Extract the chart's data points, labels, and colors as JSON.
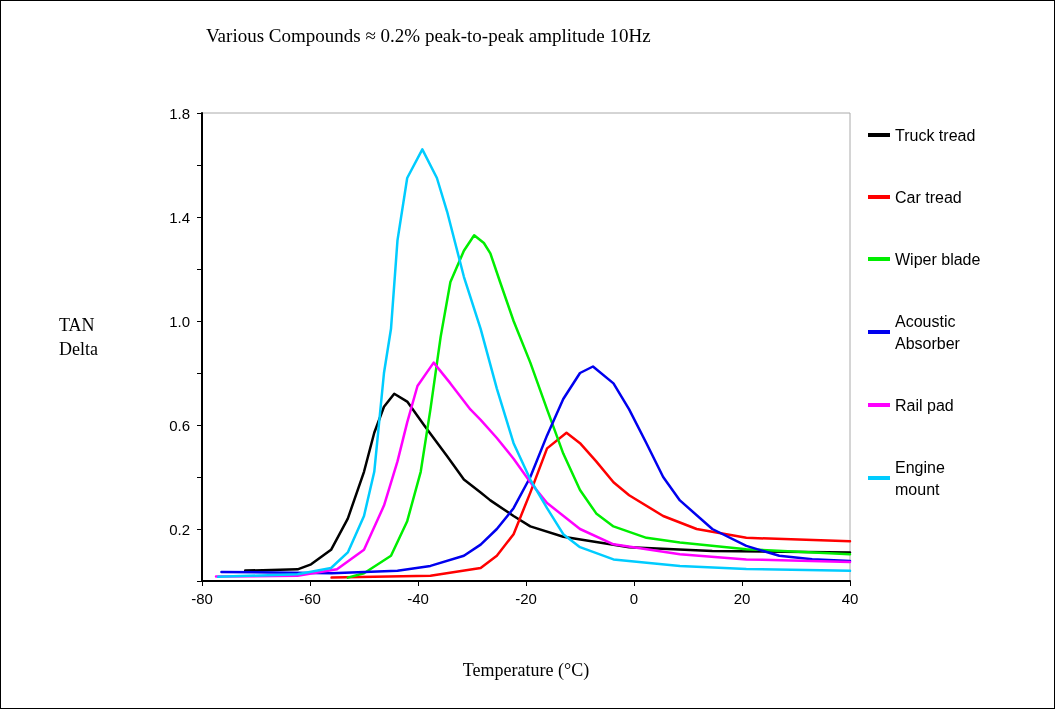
{
  "chart_data": {
    "type": "line",
    "title": "Various Compounds ≈ 0.2% peak-to-peak amplitude 10Hz",
    "xlabel": "Temperature (°C)",
    "ylabel": "TAN\nDelta",
    "xlim": [
      -80,
      40
    ],
    "xticks": [
      -80,
      -60,
      -40,
      -20,
      0,
      20,
      40
    ],
    "ylim": [
      0,
      1.8
    ],
    "yticks": [
      {
        "value": 0,
        "label": null
      },
      0.2,
      {
        "value": 0.4,
        "label": null
      },
      0.6,
      {
        "value": 0.8,
        "label": null
      },
      {
        "value": 1,
        "label": "1.0"
      },
      {
        "value": 1.2,
        "label": null
      },
      1.4,
      {
        "value": 1.6,
        "label": null
      },
      1.8
    ],
    "grid": false,
    "legend": "right",
    "marker": "none",
    "line_style": "solid",
    "series": [
      {
        "name": "Truck tread",
        "color": "#000000",
        "x": [
          -72,
          -62.3,
          -59.8,
          -56.1,
          -53,
          -50,
          -48.1,
          -46.3,
          -44.4,
          -42,
          -38.9,
          -34.6,
          -31.5,
          -28.4,
          -26.6,
          -22.3,
          -19.2,
          -13.1,
          -7,
          -0.9,
          14.5,
          40
        ],
        "values": [
          0.04,
          0.045,
          0.064,
          0.12,
          0.24,
          0.42,
          0.57,
          0.67,
          0.72,
          0.69,
          0.6,
          0.48,
          0.39,
          0.34,
          0.31,
          0.25,
          0.21,
          0.17,
          0.15,
          0.13,
          0.115,
          0.11
        ]
      },
      {
        "name": "Car tread",
        "color": "#ff0000",
        "x": [
          -56,
          -37.7,
          -28.4,
          -25.4,
          -22.3,
          -19.2,
          -16.1,
          -12.5,
          -10,
          -7,
          -3.8,
          -0.9,
          5.4,
          11.6,
          20.8,
          40
        ],
        "values": [
          0.013,
          0.02,
          0.05,
          0.097,
          0.18,
          0.34,
          0.51,
          0.57,
          0.53,
          0.46,
          0.38,
          0.33,
          0.25,
          0.2,
          0.166,
          0.153
        ]
      },
      {
        "name": "Wiper blade",
        "color": "#00ee00",
        "x": [
          -53,
          -50,
          -45,
          -42,
          -39.5,
          -37.7,
          -35.8,
          -34,
          -31.5,
          -29.6,
          -27.8,
          -26.6,
          -24.8,
          -22.3,
          -19.2,
          -16.1,
          -13.1,
          -10,
          -7,
          -3.8,
          2.3,
          8.5,
          20.8,
          40
        ],
        "values": [
          0.013,
          0.03,
          0.097,
          0.23,
          0.42,
          0.66,
          0.94,
          1.15,
          1.27,
          1.33,
          1.3,
          1.26,
          1.15,
          1.0,
          0.84,
          0.66,
          0.49,
          0.35,
          0.26,
          0.21,
          0.166,
          0.148,
          0.122,
          0.103
        ]
      },
      {
        "name": "Acoustic\nAbsorber",
        "color": "#0000ee",
        "x": [
          -76.4,
          -56,
          -43.8,
          -37.7,
          -31.5,
          -28.4,
          -25.4,
          -22.3,
          -19.2,
          -16.1,
          -13.1,
          -10,
          -7.6,
          -3.8,
          -0.9,
          2.3,
          5.4,
          8.5,
          14.5,
          20.8,
          26.9,
          33,
          40
        ],
        "values": [
          0.035,
          0.03,
          0.039,
          0.058,
          0.097,
          0.14,
          0.2,
          0.28,
          0.4,
          0.56,
          0.7,
          0.8,
          0.825,
          0.76,
          0.66,
          0.53,
          0.4,
          0.31,
          0.2,
          0.135,
          0.097,
          0.084,
          0.077
        ]
      },
      {
        "name": "Rail pad",
        "color": "#ff00ff",
        "x": [
          -77.4,
          -62.3,
          -55,
          -50,
          -46.3,
          -43.8,
          -42,
          -40.1,
          -37.1,
          -34,
          -30.3,
          -28.4,
          -25.4,
          -22.3,
          -19.2,
          -16.1,
          -10,
          -3.8,
          8.5,
          20.8,
          40
        ],
        "values": [
          0.017,
          0.02,
          0.045,
          0.12,
          0.29,
          0.46,
          0.61,
          0.75,
          0.84,
          0.76,
          0.66,
          0.62,
          0.55,
          0.47,
          0.38,
          0.3,
          0.2,
          0.141,
          0.103,
          0.083,
          0.073
        ]
      },
      {
        "name": "Engine\nmount",
        "color": "#00ccff",
        "x": [
          -77,
          -62.3,
          -56.1,
          -53,
          -50,
          -48.1,
          -46.3,
          -45,
          -43.8,
          -42,
          -39.2,
          -36.5,
          -34.6,
          -31.5,
          -28.4,
          -25.4,
          -22.3,
          -19.2,
          -16.1,
          -13.1,
          -10,
          -3.8,
          8.5,
          20.8,
          40
        ],
        "values": [
          0.016,
          0.026,
          0.05,
          0.11,
          0.25,
          0.42,
          0.8,
          0.97,
          1.31,
          1.55,
          1.66,
          1.55,
          1.42,
          1.17,
          0.97,
          0.74,
          0.53,
          0.39,
          0.28,
          0.18,
          0.13,
          0.083,
          0.058,
          0.046,
          0.039
        ]
      }
    ]
  }
}
